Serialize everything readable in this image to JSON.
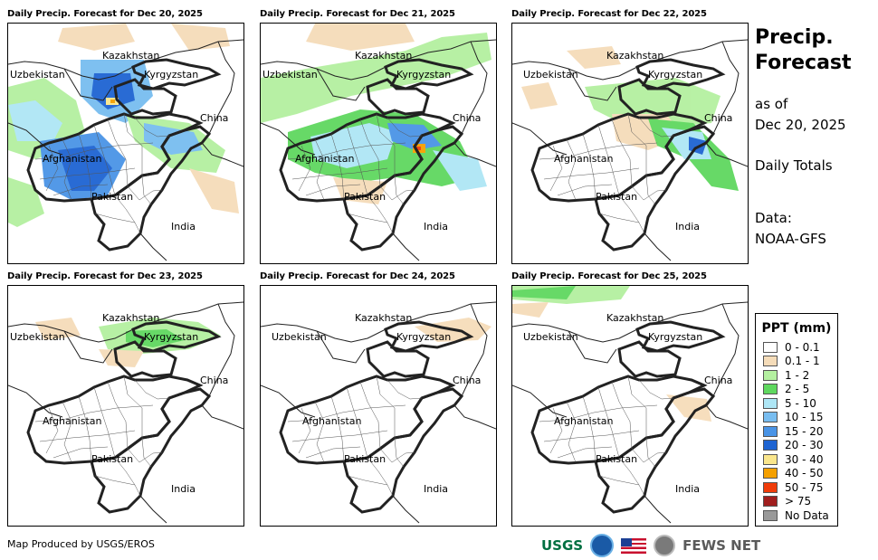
{
  "panels": [
    {
      "title": "Daily Precip. Forecast for Dec 20, 2025"
    },
    {
      "title": "Daily Precip. Forecast for Dec 21, 2025"
    },
    {
      "title": "Daily Precip. Forecast for Dec 22, 2025"
    },
    {
      "title": "Daily Precip. Forecast for Dec 23, 2025"
    },
    {
      "title": "Daily Precip. Forecast for Dec 24, 2025"
    },
    {
      "title": "Daily Precip. Forecast for Dec 25, 2025"
    }
  ],
  "map_labels": {
    "kazakhstan": "Kazakhstan",
    "uzbekistan": "Uzbekistan",
    "kyrgyzstan": "Kyrgyzstan",
    "china": "China",
    "afghanistan": "Afghanistan",
    "pakistan": "Pakistan",
    "india": "India"
  },
  "title_block": {
    "title_line1": "Precip.",
    "title_line2": "Forecast",
    "asof_line1": "as of",
    "asof_line2": "Dec 20, 2025",
    "totals": "Daily Totals",
    "data_line1": "Data:",
    "data_line2": "NOAA-GFS"
  },
  "legend": {
    "title": "PPT (mm)",
    "items": [
      {
        "label": "0 - 0.1",
        "color": "#ffffff"
      },
      {
        "label": "0.1 - 1",
        "color": "#f5dcb9"
      },
      {
        "label": "1 - 2",
        "color": "#b4f0a0"
      },
      {
        "label": "2 - 5",
        "color": "#5fd85f"
      },
      {
        "label": "5 - 10",
        "color": "#aee6f5"
      },
      {
        "label": "10 - 15",
        "color": "#78bdf0"
      },
      {
        "label": "15 - 20",
        "color": "#4a94e6"
      },
      {
        "label": "20 - 30",
        "color": "#1e64d2"
      },
      {
        "label": "30 - 40",
        "color": "#fae68c"
      },
      {
        "label": "40 - 50",
        "color": "#f5a000"
      },
      {
        "label": "50 - 75",
        "color": "#f03c0a"
      },
      {
        "label": "> 75",
        "color": "#a01e1e"
      },
      {
        "label": "No Data",
        "color": "#999999"
      }
    ]
  },
  "footer": {
    "credit": "Map Produced by USGS/EROS",
    "usgs": "USGS",
    "fews": "FEWS NET"
  },
  "icons": [
    "usgs-logo-icon",
    "noaa-logo-icon",
    "us-flag-icon",
    "state-seal-icon"
  ]
}
